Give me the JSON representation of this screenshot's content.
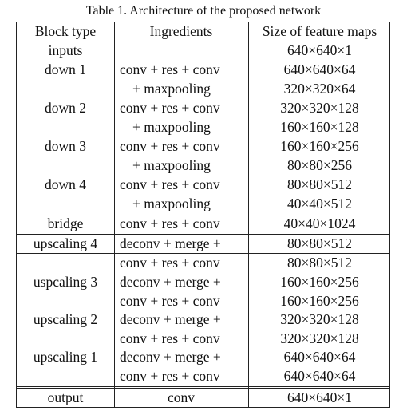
{
  "caption": "Table 1. Architecture of the proposed network",
  "headers": [
    "Block type",
    "Ingredients",
    "Size of feature maps"
  ],
  "rows": [
    {
      "block": "inputs",
      "lines": [
        [
          "",
          "640×640×1"
        ]
      ]
    },
    {
      "block": "down 1",
      "lines": [
        [
          "conv + res + conv",
          "640×640×64"
        ],
        [
          "+ maxpooling",
          "320×320×64"
        ]
      ]
    },
    {
      "block": "down 2",
      "lines": [
        [
          "conv + res + conv",
          "320×320×128"
        ],
        [
          "+ maxpooling",
          "160×160×128"
        ]
      ]
    },
    {
      "block": "down 3",
      "lines": [
        [
          "conv + res + conv",
          "160×160×256"
        ],
        [
          "+ maxpooling",
          "80×80×256"
        ]
      ]
    },
    {
      "block": "down 4",
      "lines": [
        [
          "conv + res + conv",
          "80×80×512"
        ],
        [
          "+ maxpooling",
          "40×40×512"
        ]
      ]
    },
    {
      "block": "bridge",
      "lines": [
        [
          "conv + res + conv",
          "40×40×1024"
        ]
      ]
    },
    {
      "block": "upscaling 4",
      "lines": [
        [
          "deconv + merge +",
          "80×80×512"
        ],
        [
          "conv + res + conv",
          "80×80×512"
        ]
      ]
    },
    {
      "block": "uspcaling 3",
      "lines": [
        [
          "deconv + merge +",
          "160×160×256"
        ],
        [
          "conv + res + conv",
          "160×160×256"
        ]
      ]
    },
    {
      "block": "upscaling 2",
      "lines": [
        [
          "deconv + merge +",
          "320×320×128"
        ],
        [
          "conv + res + conv",
          "320×320×128"
        ]
      ]
    },
    {
      "block": "upscaling 1",
      "lines": [
        [
          "deconv + merge +",
          "640×640×64"
        ],
        [
          "conv + res + conv",
          "640×640×64"
        ]
      ]
    },
    {
      "block": "output",
      "lines": [
        [
          "conv",
          "640×640×1"
        ]
      ]
    }
  ]
}
